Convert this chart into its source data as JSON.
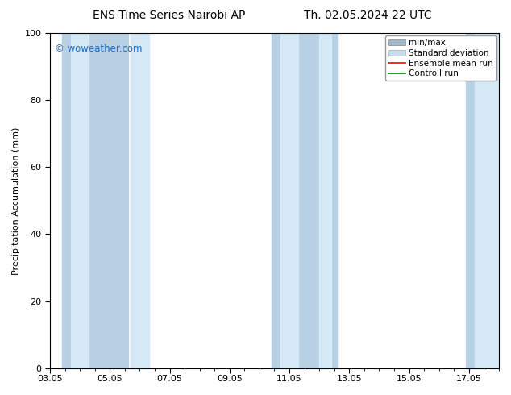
{
  "title_left": "ENS Time Series Nairobi AP",
  "title_right": "Th. 02.05.2024 22 UTC",
  "ylabel": "Precipitation Accumulation (mm)",
  "watermark": "© woweather.com",
  "watermark_color": "#1a6bc4",
  "ylim": [
    0,
    100
  ],
  "yticks": [
    0,
    20,
    40,
    60,
    80,
    100
  ],
  "xtick_labels": [
    "03.05",
    "05.05",
    "07.05",
    "09.05",
    "11.05",
    "13.05",
    "15.05",
    "17.05"
  ],
  "xtick_positions": [
    0,
    2,
    4,
    6,
    8,
    10,
    12,
    14
  ],
  "x_total": 15,
  "shaded_bands": [
    {
      "xmin": 0.5,
      "xmax": 1.5,
      "color_outer": "#d0e4f0",
      "color_inner": "#e0eef8"
    },
    {
      "xmin": 1.5,
      "xmax": 2.5,
      "color_outer": "#d0e4f0",
      "color_inner": "#e0eef8"
    },
    {
      "xmin": 7.5,
      "xmax": 9.5,
      "color_outer": "#d0e4f0",
      "color_inner": "#e0eef8"
    },
    {
      "xmin": 13.5,
      "xmax": 15.5,
      "color_outer": "#d0e4f0",
      "color_inner": "#e0eef8"
    }
  ],
  "minmax_color": "#b8d0e4",
  "std_color": "#d4e8f5",
  "bg_color": "#ffffff",
  "plot_bg_color": "#ffffff",
  "legend_labels": [
    "min/max",
    "Standard deviation",
    "Ensemble mean run",
    "Controll run"
  ],
  "legend_minmax_color": "#a0b8cc",
  "legend_std_color": "#c8dcec",
  "legend_mean_color": "#ff0000",
  "legend_ctrl_color": "#008000",
  "title_fontsize": 10,
  "tick_fontsize": 8,
  "ylabel_fontsize": 8,
  "watermark_fontsize": 8.5,
  "legend_fontsize": 7.5
}
